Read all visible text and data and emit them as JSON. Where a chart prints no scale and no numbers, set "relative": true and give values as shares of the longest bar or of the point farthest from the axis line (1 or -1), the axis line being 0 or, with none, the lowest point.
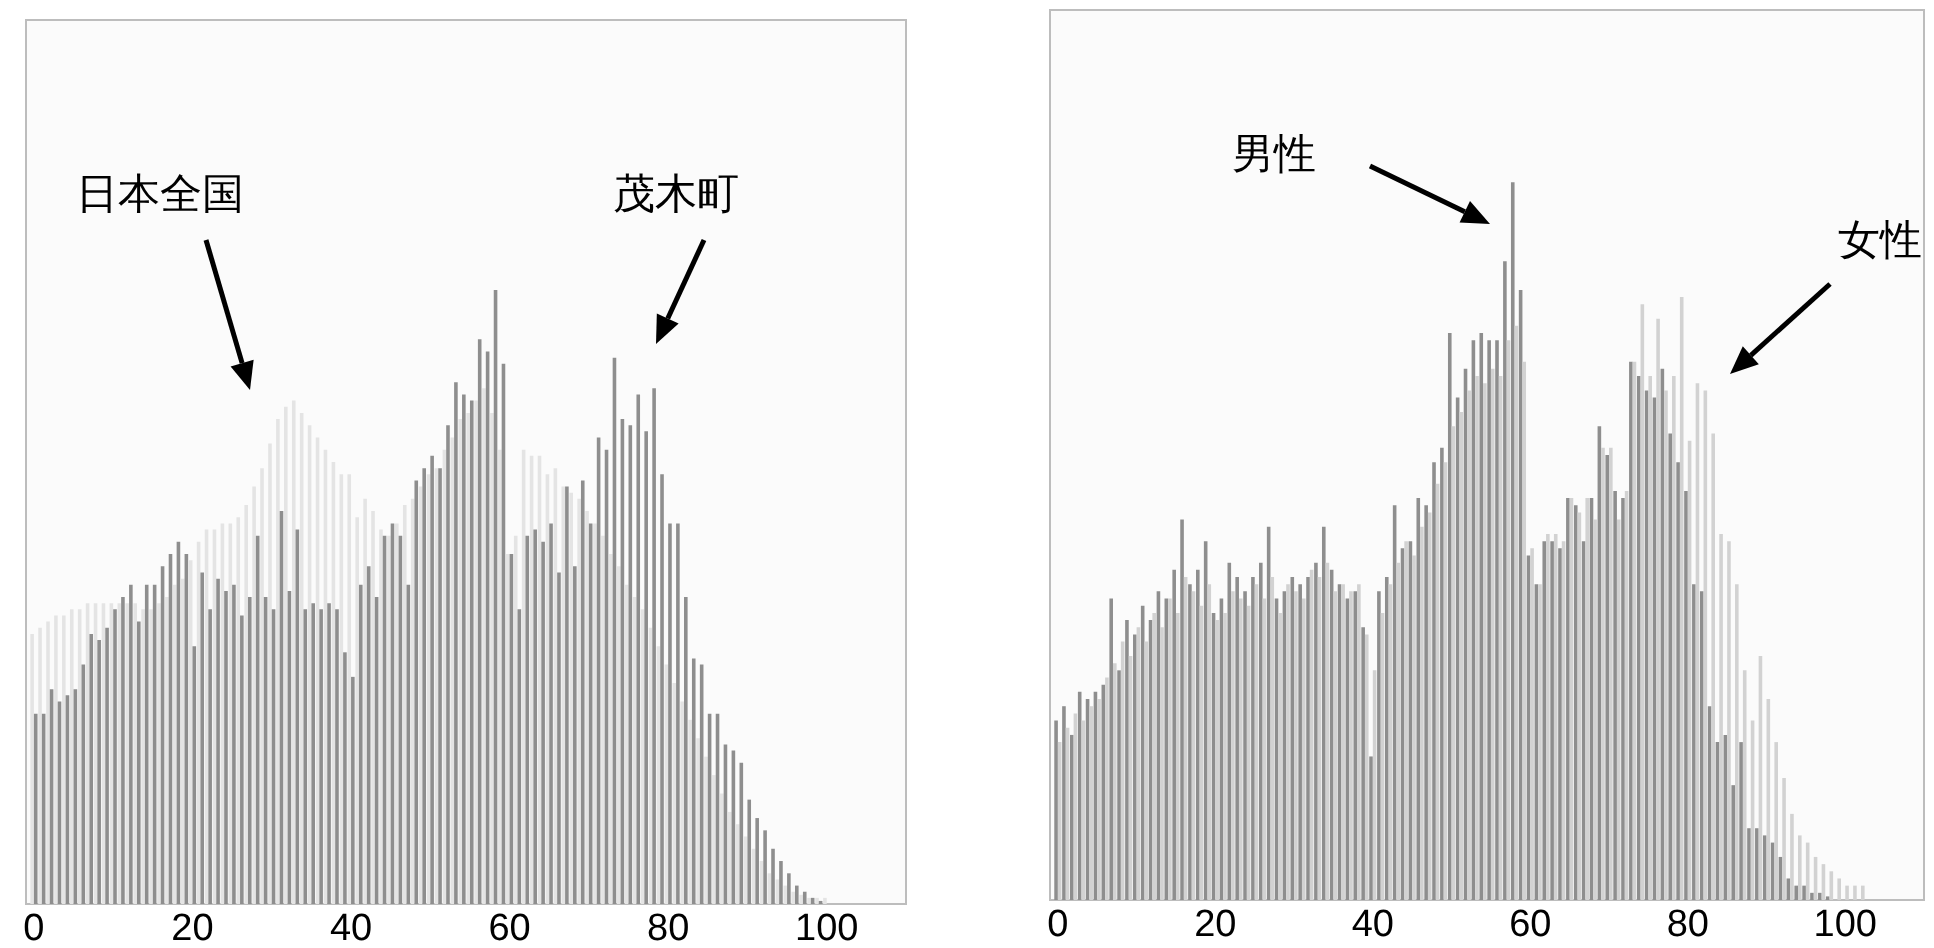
{
  "chart_data": [
    {
      "type": "bar",
      "relative": true,
      "x": [
        0,
        1,
        2,
        3,
        4,
        5,
        6,
        7,
        8,
        9,
        10,
        11,
        12,
        13,
        14,
        15,
        16,
        17,
        18,
        19,
        20,
        21,
        22,
        23,
        24,
        25,
        26,
        27,
        28,
        29,
        30,
        31,
        32,
        33,
        34,
        35,
        36,
        37,
        38,
        39,
        40,
        41,
        42,
        43,
        44,
        45,
        46,
        47,
        48,
        49,
        50,
        51,
        52,
        53,
        54,
        55,
        56,
        57,
        58,
        59,
        60,
        61,
        62,
        63,
        64,
        65,
        66,
        67,
        68,
        69,
        70,
        71,
        72,
        73,
        74,
        75,
        76,
        77,
        78,
        79,
        80,
        81,
        82,
        83,
        84,
        85,
        86,
        87,
        88,
        89,
        90,
        91,
        92,
        93,
        94,
        95,
        96,
        97,
        98,
        99,
        100
      ],
      "xlim": [
        -1,
        110
      ],
      "xticks": [
        0,
        20,
        40,
        60,
        80,
        100
      ],
      "grid": false,
      "series": [
        {
          "color": "#e4e4e4",
          "values": [
            0.44,
            0.45,
            0.46,
            0.47,
            0.47,
            0.48,
            0.48,
            0.49,
            0.49,
            0.49,
            0.49,
            0.49,
            0.49,
            0.49,
            0.48,
            0.48,
            0.49,
            0.5,
            0.52,
            0.53,
            0.56,
            0.59,
            0.61,
            0.61,
            0.62,
            0.62,
            0.63,
            0.65,
            0.68,
            0.71,
            0.75,
            0.79,
            0.81,
            0.82,
            0.8,
            0.78,
            0.76,
            0.74,
            0.72,
            0.7,
            0.7,
            0.63,
            0.66,
            0.64,
            0.61,
            0.6,
            0.62,
            0.65,
            0.66,
            0.68,
            0.7,
            0.71,
            0.74,
            0.76,
            0.79,
            0.8,
            0.82,
            0.84,
            0.8,
            0.74,
            0.57,
            0.6,
            0.74,
            0.73,
            0.73,
            0.7,
            0.71,
            0.68,
            0.67,
            0.66,
            0.64,
            0.62,
            0.6,
            0.57,
            0.55,
            0.52,
            0.5,
            0.48,
            0.45,
            0.42,
            0.39,
            0.36,
            0.33,
            0.3,
            0.27,
            0.24,
            0.21,
            0.18,
            0.15,
            0.13,
            0.11,
            0.09,
            0.07,
            0.05,
            0.04,
            0.03,
            0.02,
            0.015,
            0.01,
            0.01,
            0.01
          ]
        },
        {
          "color": "#8e8e8e",
          "values": [
            0.31,
            0.31,
            0.35,
            0.33,
            0.34,
            0.35,
            0.39,
            0.44,
            0.43,
            0.45,
            0.48,
            0.5,
            0.52,
            0.46,
            0.52,
            0.52,
            0.55,
            0.57,
            0.59,
            0.57,
            0.42,
            0.54,
            0.48,
            0.53,
            0.51,
            0.52,
            0.47,
            0.5,
            0.6,
            0.5,
            0.48,
            0.64,
            0.51,
            0.61,
            0.48,
            0.49,
            0.48,
            0.49,
            0.48,
            0.41,
            0.37,
            0.52,
            0.55,
            0.5,
            0.6,
            0.62,
            0.6,
            0.52,
            0.69,
            0.71,
            0.73,
            0.71,
            0.78,
            0.85,
            0.83,
            0.82,
            0.92,
            0.9,
            1.0,
            0.88,
            0.57,
            0.48,
            0.6,
            0.61,
            0.59,
            0.62,
            0.54,
            0.68,
            0.55,
            0.69,
            0.62,
            0.76,
            0.74,
            0.89,
            0.79,
            0.78,
            0.83,
            0.77,
            0.84,
            0.7,
            0.62,
            0.62,
            0.5,
            0.4,
            0.39,
            0.31,
            0.31,
            0.26,
            0.25,
            0.23,
            0.17,
            0.14,
            0.12,
            0.09,
            0.07,
            0.05,
            0.03,
            0.02,
            0.01,
            0.005,
            0
          ]
        }
      ],
      "annotations": [
        "日本全国",
        "茂木町"
      ]
    },
    {
      "type": "bar",
      "relative": true,
      "x": [
        0,
        1,
        2,
        3,
        4,
        5,
        6,
        7,
        8,
        9,
        10,
        11,
        12,
        13,
        14,
        15,
        16,
        17,
        18,
        19,
        20,
        21,
        22,
        23,
        24,
        25,
        26,
        27,
        28,
        29,
        30,
        31,
        32,
        33,
        34,
        35,
        36,
        37,
        38,
        39,
        40,
        41,
        42,
        43,
        44,
        45,
        46,
        47,
        48,
        49,
        50,
        51,
        52,
        53,
        54,
        55,
        56,
        57,
        58,
        59,
        60,
        61,
        62,
        63,
        64,
        65,
        66,
        67,
        68,
        69,
        70,
        71,
        72,
        73,
        74,
        75,
        76,
        77,
        78,
        79,
        80,
        81,
        82,
        83,
        84,
        85,
        86,
        87,
        88,
        89,
        90,
        91,
        92,
        93,
        94,
        95,
        96,
        97,
        98,
        99,
        100,
        101,
        102
      ],
      "xlim": [
        -1,
        110
      ],
      "xticks": [
        0,
        20,
        40,
        60,
        80,
        100
      ],
      "grid": false,
      "series": [
        {
          "color": "#8e8e8e",
          "values": [
            0.25,
            0.27,
            0.23,
            0.29,
            0.28,
            0.29,
            0.3,
            0.42,
            0.32,
            0.39,
            0.37,
            0.41,
            0.39,
            0.43,
            0.42,
            0.46,
            0.53,
            0.44,
            0.46,
            0.5,
            0.4,
            0.42,
            0.47,
            0.45,
            0.43,
            0.45,
            0.47,
            0.52,
            0.42,
            0.43,
            0.45,
            0.44,
            0.45,
            0.47,
            0.52,
            0.46,
            0.44,
            0.42,
            0.43,
            0.38,
            0.2,
            0.43,
            0.45,
            0.55,
            0.49,
            0.5,
            0.56,
            0.55,
            0.61,
            0.63,
            0.79,
            0.7,
            0.74,
            0.78,
            0.79,
            0.78,
            0.78,
            0.89,
            1.0,
            0.85,
            0.48,
            0.44,
            0.5,
            0.5,
            0.49,
            0.56,
            0.55,
            0.5,
            0.56,
            0.66,
            0.62,
            0.57,
            0.56,
            0.75,
            0.73,
            0.71,
            0.7,
            0.74,
            0.65,
            0.61,
            0.57,
            0.44,
            0.43,
            0.27,
            0.22,
            0.23,
            0.16,
            0.22,
            0.1,
            0.1,
            0.09,
            0.08,
            0.06,
            0.03,
            0.02,
            0.02,
            0.01,
            0.01,
            0.005,
            0,
            0,
            0,
            0
          ]
        },
        {
          "color": "#d2d2d2",
          "values": [
            0.22,
            0.24,
            0.26,
            0.25,
            0.27,
            0.28,
            0.31,
            0.33,
            0.36,
            0.34,
            0.38,
            0.36,
            0.4,
            0.38,
            0.42,
            0.4,
            0.45,
            0.43,
            0.41,
            0.44,
            0.39,
            0.4,
            0.43,
            0.42,
            0.41,
            0.44,
            0.42,
            0.45,
            0.4,
            0.44,
            0.43,
            0.42,
            0.46,
            0.45,
            0.47,
            0.43,
            0.44,
            0.43,
            0.44,
            0.37,
            0.32,
            0.4,
            0.44,
            0.47,
            0.5,
            0.48,
            0.52,
            0.54,
            0.58,
            0.61,
            0.66,
            0.68,
            0.71,
            0.73,
            0.72,
            0.74,
            0.73,
            0.78,
            0.8,
            0.75,
            0.49,
            0.44,
            0.51,
            0.51,
            0.5,
            0.56,
            0.54,
            0.56,
            0.53,
            0.63,
            0.63,
            0.53,
            0.57,
            0.75,
            0.83,
            0.73,
            0.81,
            0.71,
            0.73,
            0.84,
            0.64,
            0.72,
            0.71,
            0.65,
            0.51,
            0.5,
            0.44,
            0.32,
            0.25,
            0.34,
            0.28,
            0.22,
            0.17,
            0.12,
            0.09,
            0.08,
            0.06,
            0.05,
            0.04,
            0.03,
            0.02,
            0.02,
            0.02
          ]
        }
      ],
      "annotations": [
        "男性",
        "女性"
      ]
    }
  ]
}
